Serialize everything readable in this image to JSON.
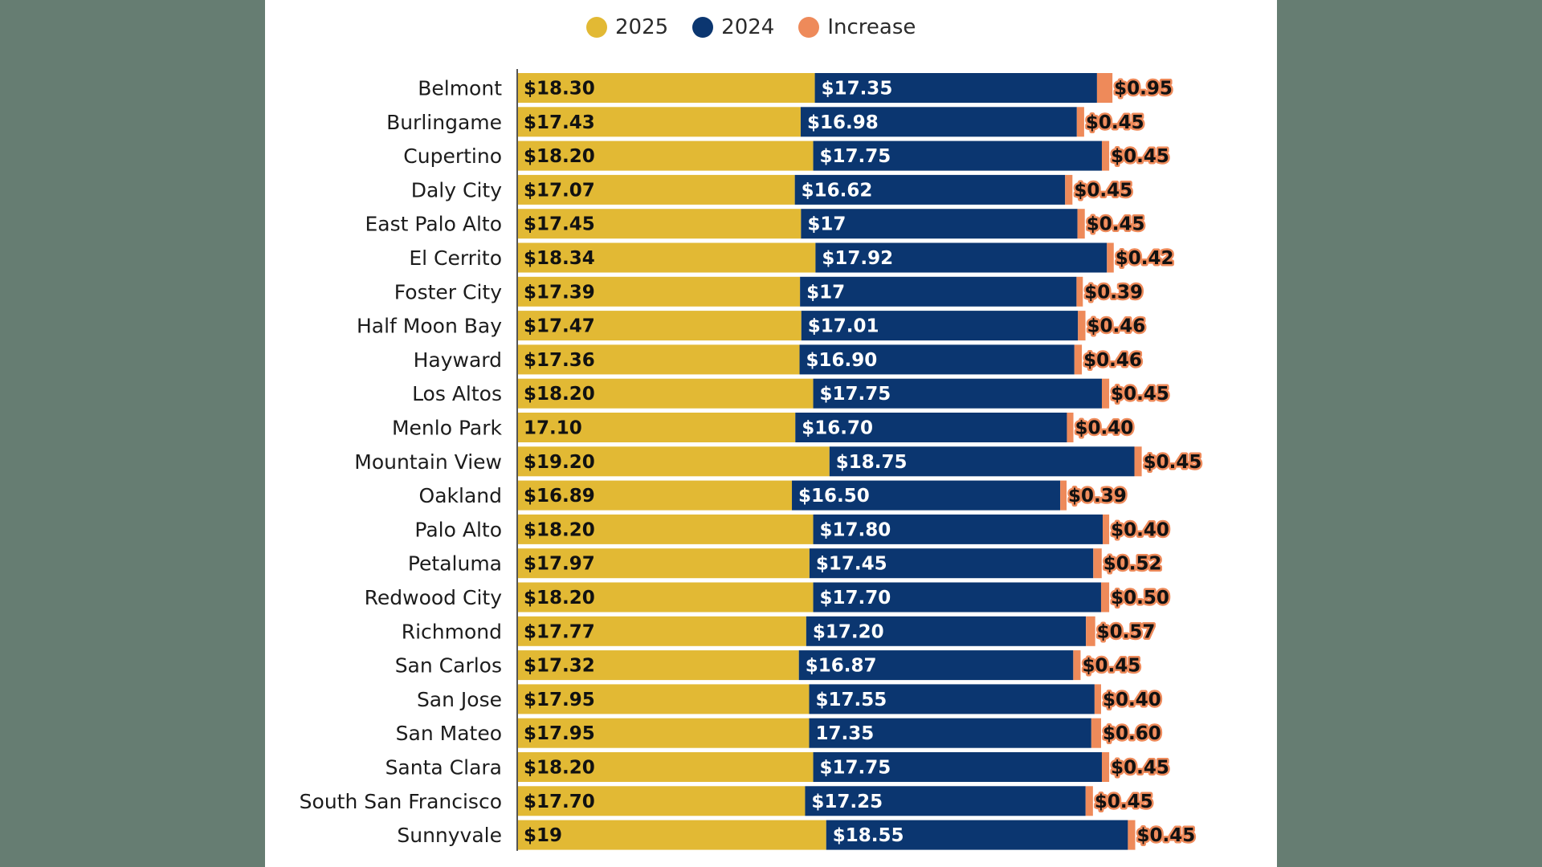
{
  "colors": {
    "background": "#667d72",
    "panel": "#ffffff",
    "v2025": "#e2b934",
    "v2024": "#0b3670",
    "increase": "#ee8a5a",
    "label_dark": "#111111",
    "label_light": "#ffffff"
  },
  "legend": [
    {
      "label": "2025",
      "color": "#e2b934"
    },
    {
      "label": "2024",
      "color": "#0b3670"
    },
    {
      "label": "Increase",
      "color": "#ee8a5a"
    }
  ],
  "chart_data": {
    "type": "bar",
    "orientation": "horizontal",
    "stacked": true,
    "grid": false,
    "legend_position": "top",
    "categories": [
      "Belmont",
      "Burlingame",
      "Cupertino",
      "Daly City",
      "East Palo Alto",
      "El Cerrito",
      "Foster City",
      "Half Moon Bay",
      "Hayward",
      "Los Altos",
      "Menlo Park",
      "Mountain View",
      "Oakland",
      "Palo Alto",
      "Petaluma",
      "Redwood City",
      "Richmond",
      "San Carlos",
      "San Jose",
      "San Mateo",
      "Santa Clara",
      "South San Francisco",
      "Sunnyvale"
    ],
    "series": [
      {
        "name": "2025",
        "values": [
          18.3,
          17.43,
          18.2,
          17.07,
          17.45,
          18.34,
          17.39,
          17.47,
          17.36,
          18.2,
          17.1,
          19.2,
          16.89,
          18.2,
          17.97,
          18.2,
          17.77,
          17.32,
          17.95,
          17.95,
          18.2,
          17.7,
          19
        ],
        "labels": [
          "$18.30",
          "$17.43",
          "$18.20",
          "$17.07",
          "$17.45",
          "$18.34",
          "$17.39",
          "$17.47",
          "$17.36",
          "$18.20",
          "17.10",
          "$19.20",
          "$16.89",
          "$18.20",
          "$17.97",
          "$18.20",
          "$17.77",
          "$17.32",
          "$17.95",
          "$17.95",
          "$18.20",
          "$17.70",
          "$19"
        ]
      },
      {
        "name": "2024",
        "values": [
          17.35,
          16.98,
          17.75,
          16.62,
          17,
          17.92,
          17,
          17.01,
          16.9,
          17.75,
          16.7,
          18.75,
          16.5,
          17.8,
          17.45,
          17.7,
          17.2,
          16.87,
          17.55,
          17.35,
          17.75,
          17.25,
          18.55
        ],
        "labels": [
          "$17.35",
          "$16.98",
          "$17.75",
          "$16.62",
          "$17",
          "$17.92",
          "$17",
          "$17.01",
          "$16.90",
          "$17.75",
          "$16.70",
          "$18.75",
          "$16.50",
          "$17.80",
          "$17.45",
          "$17.70",
          "$17.20",
          "$16.87",
          "$17.55",
          "17.35",
          "$17.75",
          "$17.25",
          "$18.55"
        ]
      },
      {
        "name": "Increase",
        "values": [
          0.95,
          0.45,
          0.45,
          0.45,
          0.45,
          0.42,
          0.39,
          0.46,
          0.46,
          0.45,
          0.4,
          0.45,
          0.39,
          0.4,
          0.52,
          0.5,
          0.57,
          0.45,
          0.4,
          0.6,
          0.45,
          0.45,
          0.45
        ],
        "labels": [
          "$0.95",
          "$0.45",
          "$0.45",
          "$0.45",
          "$0.45",
          "$0.42",
          "$0.39",
          "$0.46",
          "$0.46",
          "$0.45",
          "$0.40",
          "$0.45",
          "$0.39",
          "$0.40",
          "$0.52",
          "$0.50",
          "$0.57",
          "$0.45",
          "$0.40",
          "$0.60",
          "$0.45",
          "$0.45",
          "$0.45"
        ]
      }
    ]
  }
}
